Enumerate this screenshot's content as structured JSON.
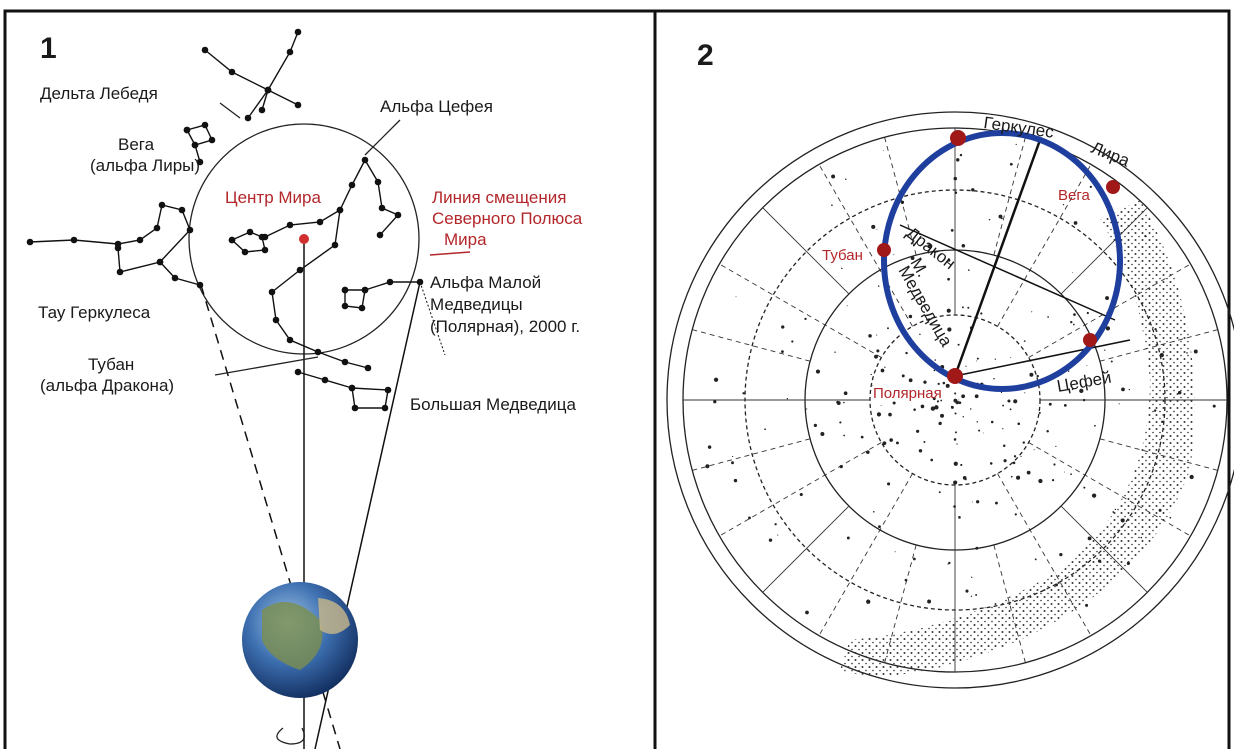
{
  "panel_1": {
    "number": "1",
    "labels": [
      {
        "lines": [
          "Дельта Лебедя"
        ]
      },
      {
        "lines": [
          "Вега",
          "(альфа Лиры)"
        ]
      },
      {
        "lines": [
          "Альфа Цефея"
        ]
      },
      {
        "lines": [
          "Центр Мира"
        ]
      },
      {
        "lines": [
          "Линия смещения",
          "Северного Полюса",
          "Мира"
        ]
      },
      {
        "lines": [
          "Тау Геркулеса"
        ]
      },
      {
        "lines": [
          "Альфа Малой",
          "Медведицы",
          "(Полярная), 2000 г."
        ]
      },
      {
        "lines": [
          "Тубан",
          "(альфа Дракона)"
        ]
      },
      {
        "lines": [
          "Большая Медведица"
        ]
      }
    ]
  },
  "panel_2": {
    "number": "2",
    "labels": [
      "Геркулес",
      "Лира",
      "Вега",
      "Тубан",
      "Дракон",
      "М.",
      "Медведица",
      "Полярная",
      "Цефей"
    ]
  }
}
